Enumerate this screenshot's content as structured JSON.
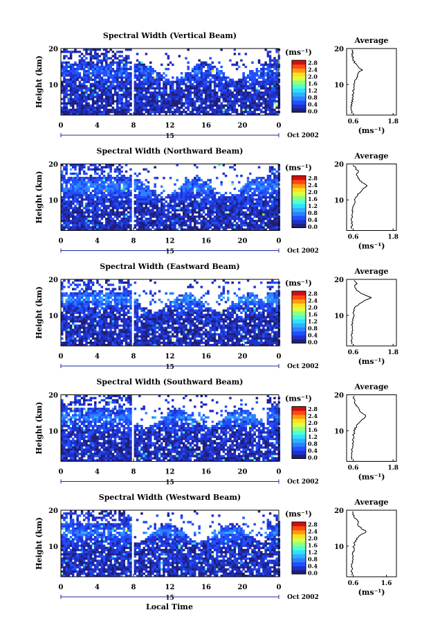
{
  "figure": {
    "xlabel": "Local Time",
    "date_label": "Oct 2002",
    "day_label": "15",
    "height_label": "Height (km)",
    "colorbar_unit": "(ms⁻¹)",
    "avg_title": "Average",
    "avg_unit": "(ms⁻¹)"
  },
  "chart_data": [
    {
      "type": "heatmap",
      "title": "Spectral Width (Vertical Beam)",
      "xlabel": "Local Time",
      "ylabel": "Height (km)",
      "x_ticks": [
        "0",
        "4",
        "8",
        "12",
        "16",
        "20",
        "0"
      ],
      "xlim": [
        0,
        24
      ],
      "y_ticks": [
        "20",
        "10"
      ],
      "ylim": [
        1.5,
        20
      ],
      "colorbar": {
        "unit": "(ms⁻¹)",
        "ticks": [
          "2.8",
          "2.4",
          "2.0",
          "1.6",
          "1.2",
          "0.8",
          "0.4",
          "0.0"
        ],
        "range": [
          0,
          3.0
        ]
      },
      "average_profile": {
        "title": "Average",
        "xlabel": "(ms⁻¹)",
        "x_ticks": [
          "0.6",
          "1.8"
        ],
        "xlim": [
          0.4,
          1.9
        ],
        "ylim": [
          1.5,
          20
        ],
        "height_km": [
          2,
          4,
          6,
          8,
          10,
          11,
          12,
          13,
          14,
          15,
          16,
          17,
          18,
          19,
          20
        ],
        "width_ms": [
          0.55,
          0.55,
          0.57,
          0.6,
          0.62,
          0.65,
          0.7,
          0.75,
          0.85,
          0.75,
          0.65,
          0.6,
          0.58,
          0.57,
          0.57
        ]
      }
    },
    {
      "type": "heatmap",
      "title": "Spectral Width (Northward Beam)",
      "xlabel": "Local Time",
      "ylabel": "Height (km)",
      "x_ticks": [
        "0",
        "4",
        "8",
        "12",
        "16",
        "20",
        "0"
      ],
      "xlim": [
        0,
        24
      ],
      "y_ticks": [
        "20",
        "10"
      ],
      "ylim": [
        1.5,
        20
      ],
      "colorbar": {
        "unit": "(ms⁻¹)",
        "ticks": [
          "2.8",
          "2.4",
          "2.0",
          "1.6",
          "1.2",
          "0.8",
          "0.4",
          "0.0"
        ],
        "range": [
          0,
          3.0
        ]
      },
      "average_profile": {
        "title": "Average",
        "xlabel": "(ms⁻¹)",
        "x_ticks": [
          "0.6",
          "1.8"
        ],
        "xlim": [
          0.4,
          1.9
        ],
        "ylim": [
          1.5,
          20
        ],
        "height_km": [
          2,
          4,
          6,
          8,
          10,
          11,
          12,
          13,
          14,
          15,
          16,
          17,
          18,
          19,
          20
        ],
        "width_ms": [
          0.55,
          0.56,
          0.57,
          0.6,
          0.65,
          0.7,
          0.8,
          0.9,
          1.0,
          0.85,
          0.75,
          0.7,
          0.75,
          0.65,
          0.6
        ]
      }
    },
    {
      "type": "heatmap",
      "title": "Spectral Width (Eastward Beam)",
      "xlabel": "Local Time",
      "ylabel": "Height (km)",
      "x_ticks": [
        "0",
        "4",
        "8",
        "12",
        "16",
        "20",
        "0"
      ],
      "xlim": [
        0,
        24
      ],
      "y_ticks": [
        "20",
        "10"
      ],
      "ylim": [
        1.5,
        20
      ],
      "colorbar": {
        "unit": "(ms⁻¹)",
        "ticks": [
          "2.8",
          "2.4",
          "2.0",
          "1.6",
          "1.2",
          "0.8",
          "0.4",
          "0.0"
        ],
        "range": [
          0,
          3.0
        ]
      },
      "average_profile": {
        "title": "Average",
        "xlabel": "(ms⁻¹)",
        "x_ticks": [
          "0.6",
          "1.8"
        ],
        "xlim": [
          0.4,
          1.9
        ],
        "ylim": [
          1.5,
          20
        ],
        "height_km": [
          2,
          4,
          6,
          8,
          10,
          11,
          12,
          13,
          14,
          15,
          16,
          17,
          18,
          19,
          20
        ],
        "width_ms": [
          0.55,
          0.55,
          0.56,
          0.58,
          0.6,
          0.62,
          0.65,
          0.75,
          0.9,
          1.15,
          0.85,
          0.7,
          0.65,
          0.7,
          0.6
        ]
      }
    },
    {
      "type": "heatmap",
      "title": "Spectral Width (Southward Beam)",
      "xlabel": "Local Time",
      "ylabel": "Height (km)",
      "x_ticks": [
        "0",
        "4",
        "8",
        "12",
        "16",
        "20",
        "0"
      ],
      "xlim": [
        0,
        24
      ],
      "y_ticks": [
        "20",
        "10"
      ],
      "ylim": [
        1.5,
        20
      ],
      "colorbar": {
        "unit": "(ms⁻¹)",
        "ticks": [
          "2.8",
          "2.4",
          "2.0",
          "1.6",
          "1.2",
          "0.8",
          "0.4",
          "0.0"
        ],
        "range": [
          0,
          3.0
        ]
      },
      "average_profile": {
        "title": "Average",
        "xlabel": "(ms⁻¹)",
        "x_ticks": [
          "0.6",
          "1.8"
        ],
        "xlim": [
          0.4,
          1.9
        ],
        "ylim": [
          1.5,
          20
        ],
        "height_km": [
          2,
          4,
          6,
          8,
          10,
          11,
          12,
          13,
          14,
          15,
          16,
          17,
          18,
          19,
          20
        ],
        "width_ms": [
          0.55,
          0.56,
          0.58,
          0.6,
          0.63,
          0.68,
          0.75,
          0.85,
          1.0,
          0.85,
          0.75,
          0.7,
          0.65,
          0.62,
          0.6
        ]
      }
    },
    {
      "type": "heatmap",
      "title": "Spectral Width (Westward Beam)",
      "xlabel": "Local Time",
      "ylabel": "Height (km)",
      "x_ticks": [
        "0",
        "4",
        "8",
        "12",
        "16",
        "20",
        "0"
      ],
      "xlim": [
        0,
        24
      ],
      "y_ticks": [
        "20",
        "10"
      ],
      "ylim": [
        1.5,
        20
      ],
      "colorbar": {
        "unit": "(ms⁻¹)",
        "ticks": [
          "2.8",
          "2.4",
          "2.0",
          "1.6",
          "1.2",
          "0.8",
          "0.4",
          "0.0"
        ],
        "range": [
          0,
          3.0
        ]
      },
      "average_profile": {
        "title": "Average",
        "xlabel": "(ms⁻¹)",
        "x_ticks": [
          "0.6",
          "1.6"
        ],
        "xlim": [
          0.4,
          1.9
        ],
        "ylim": [
          1.5,
          20
        ],
        "height_km": [
          2,
          4,
          6,
          8,
          10,
          11,
          12,
          13,
          14,
          15,
          16,
          17,
          18,
          19,
          20
        ],
        "width_ms": [
          0.55,
          0.56,
          0.58,
          0.6,
          0.62,
          0.65,
          0.7,
          0.8,
          1.0,
          0.85,
          0.7,
          0.75,
          0.65,
          0.6,
          0.6
        ]
      }
    }
  ]
}
